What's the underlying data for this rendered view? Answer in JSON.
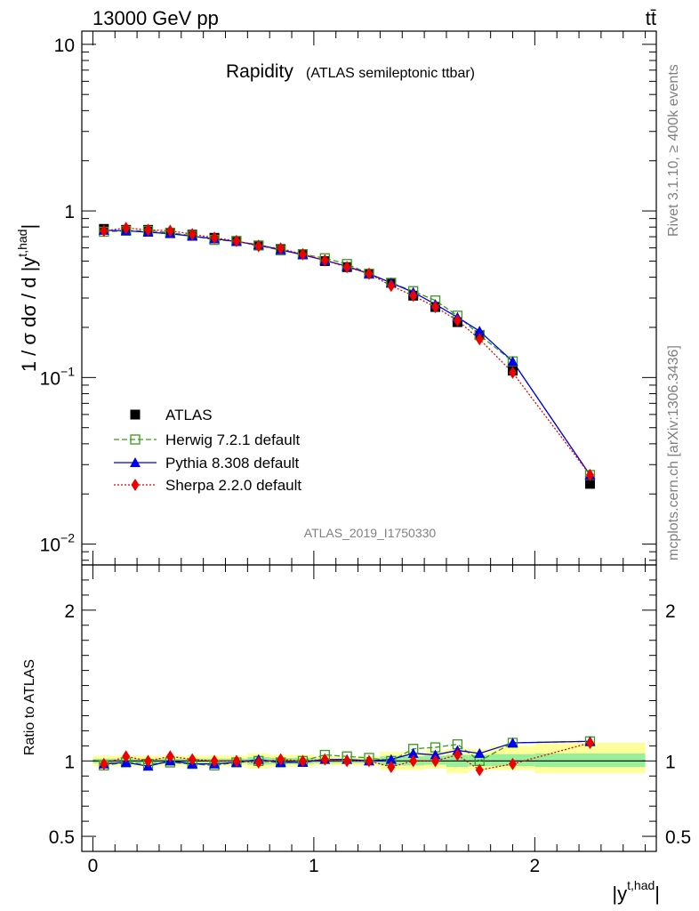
{
  "header": {
    "energy_label": "13000 GeV pp",
    "process_label": "tt̄"
  },
  "side_labels": {
    "rivet": "Rivet 3.1.10, ≥ 400k events",
    "mcplots": "mcplots.cern.ch [arXiv:1306.3436]"
  },
  "analysis_id": "ATLAS_2019_I1750330",
  "colors": {
    "data": "#000000",
    "herwig": "#3a9a1a",
    "pythia": "#0000ee",
    "sherpa": "#ee0000",
    "band_outer": "#ffff99",
    "band_inner": "#99ee99"
  },
  "chart_data": [
    {
      "type": "scatter",
      "title": "Rapidity",
      "subtitle": "(ATLAS semileptonic ttbar)",
      "ylabel": "1 / σ dσ / d |y^{t,had}|",
      "xlim": [
        -0.05,
        2.55
      ],
      "ylim": [
        0.0075,
        12
      ],
      "y_scale": "log",
      "y_ticks": [
        "10^-2",
        "10^-1",
        "1",
        "10"
      ],
      "legend_position": "bottom-left",
      "x": [
        0.05,
        0.15,
        0.25,
        0.35,
        0.45,
        0.55,
        0.65,
        0.75,
        0.85,
        0.95,
        1.05,
        1.15,
        1.25,
        1.35,
        1.45,
        1.55,
        1.65,
        1.75,
        1.9,
        2.25
      ],
      "series": [
        {
          "name": "ATLAS",
          "marker": "square-filled",
          "values": [
            0.78,
            0.77,
            0.77,
            0.74,
            0.72,
            0.69,
            0.66,
            0.62,
            0.59,
            0.55,
            0.5,
            0.46,
            0.42,
            0.37,
            0.31,
            0.265,
            0.215,
            0.18,
            0.11,
            0.023
          ]
        },
        {
          "name": "Herwig 7.2.1 default",
          "marker": "square-open",
          "line": "dashed",
          "values": [
            0.75,
            0.76,
            0.76,
            0.74,
            0.71,
            0.67,
            0.66,
            0.62,
            0.58,
            0.55,
            0.52,
            0.48,
            0.42,
            0.37,
            0.33,
            0.29,
            0.235,
            0.18,
            0.125,
            0.026
          ]
        },
        {
          "name": "Pythia 8.308 default",
          "marker": "triangle-filled",
          "line": "solid",
          "values": [
            0.765,
            0.76,
            0.745,
            0.73,
            0.705,
            0.68,
            0.655,
            0.625,
            0.585,
            0.545,
            0.505,
            0.465,
            0.42,
            0.37,
            0.325,
            0.275,
            0.23,
            0.19,
            0.125,
            0.026
          ]
        },
        {
          "name": "Sherpa 2.2.0 default",
          "marker": "diamond-filled",
          "line": "dotted",
          "values": [
            0.76,
            0.79,
            0.77,
            0.76,
            0.725,
            0.69,
            0.66,
            0.615,
            0.595,
            0.55,
            0.505,
            0.46,
            0.42,
            0.355,
            0.31,
            0.265,
            0.22,
            0.17,
            0.107,
            0.026
          ]
        }
      ]
    },
    {
      "type": "scatter",
      "ylabel": "Ratio to ATLAS",
      "xlabel": "|y^{t,had}|",
      "xlim": [
        -0.05,
        2.55
      ],
      "ylim": [
        0.4,
        2.3
      ],
      "x_ticks": [
        "0",
        "1",
        "2"
      ],
      "y_ticks": [
        "0.5",
        "1",
        "2"
      ],
      "x_bins": [
        [
          0.0,
          0.1
        ],
        [
          0.1,
          0.2
        ],
        [
          0.2,
          0.3
        ],
        [
          0.3,
          0.4
        ],
        [
          0.4,
          0.5
        ],
        [
          0.5,
          0.6
        ],
        [
          0.6,
          0.7
        ],
        [
          0.7,
          0.8
        ],
        [
          0.8,
          0.9
        ],
        [
          0.9,
          1.0
        ],
        [
          1.0,
          1.1
        ],
        [
          1.1,
          1.2
        ],
        [
          1.2,
          1.3
        ],
        [
          1.3,
          1.4
        ],
        [
          1.4,
          1.5
        ],
        [
          1.5,
          1.6
        ],
        [
          1.6,
          1.7
        ],
        [
          1.7,
          1.8
        ],
        [
          1.8,
          2.0
        ],
        [
          2.0,
          2.5
        ]
      ],
      "band_outer": [
        [
          0.965,
          1.035
        ],
        [
          0.965,
          1.035
        ],
        [
          0.965,
          1.035
        ],
        [
          0.965,
          1.035
        ],
        [
          0.965,
          1.035
        ],
        [
          0.965,
          1.035
        ],
        [
          0.965,
          1.035
        ],
        [
          0.95,
          1.05
        ],
        [
          0.96,
          1.04
        ],
        [
          0.96,
          1.04
        ],
        [
          0.97,
          1.03
        ],
        [
          0.97,
          1.03
        ],
        [
          0.97,
          1.03
        ],
        [
          0.94,
          1.06
        ],
        [
          0.94,
          1.06
        ],
        [
          0.95,
          1.07
        ],
        [
          0.92,
          1.08
        ],
        [
          0.94,
          1.08
        ],
        [
          0.94,
          1.1
        ],
        [
          0.92,
          1.12
        ]
      ],
      "band_inner": [
        [
          0.985,
          1.015
        ],
        [
          0.985,
          1.015
        ],
        [
          0.985,
          1.015
        ],
        [
          0.985,
          1.015
        ],
        [
          0.985,
          1.015
        ],
        [
          0.985,
          1.015
        ],
        [
          0.985,
          1.015
        ],
        [
          0.975,
          1.025
        ],
        [
          0.98,
          1.02
        ],
        [
          0.98,
          1.02
        ],
        [
          0.985,
          1.015
        ],
        [
          0.985,
          1.015
        ],
        [
          0.985,
          1.015
        ],
        [
          0.97,
          1.03
        ],
        [
          0.97,
          1.03
        ],
        [
          0.975,
          1.035
        ],
        [
          0.96,
          1.04
        ],
        [
          0.965,
          1.04
        ],
        [
          0.965,
          1.045
        ],
        [
          0.96,
          1.05
        ]
      ],
      "x": [
        0.05,
        0.15,
        0.25,
        0.35,
        0.45,
        0.55,
        0.65,
        0.75,
        0.85,
        0.95,
        1.05,
        1.15,
        1.25,
        1.35,
        1.45,
        1.55,
        1.65,
        1.75,
        1.9,
        2.25
      ],
      "series": [
        {
          "name": "Herwig 7.2.1 default",
          "marker": "square-open",
          "line": "dashed",
          "values": [
            0.97,
            0.99,
            0.98,
            0.99,
            0.98,
            0.97,
            0.99,
            1.0,
            0.99,
            1.0,
            1.04,
            1.03,
            1.02,
            1.0,
            1.08,
            1.09,
            1.11,
            1.0,
            1.12,
            1.13
          ]
        },
        {
          "name": "Pythia 8.308 default",
          "marker": "triangle-filled",
          "line": "solid",
          "values": [
            0.98,
            0.99,
            0.965,
            1.0,
            0.98,
            0.98,
            0.99,
            1.01,
            0.99,
            0.99,
            1.01,
            1.01,
            1.0,
            1.01,
            1.05,
            1.04,
            1.07,
            1.05,
            1.12,
            1.13
          ]
        },
        {
          "name": "Sherpa 2.2.0 default",
          "marker": "diamond-filled",
          "line": "dotted",
          "values": [
            0.98,
            1.03,
            1.0,
            1.03,
            1.01,
            1.0,
            1.0,
            0.99,
            1.01,
            1.0,
            1.01,
            1.0,
            1.0,
            0.96,
            1.0,
            1.0,
            1.04,
            0.94,
            0.98,
            1.12
          ]
        }
      ]
    }
  ]
}
